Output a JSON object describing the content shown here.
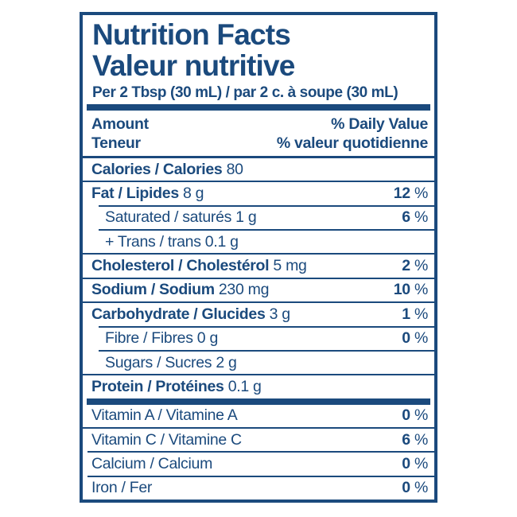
{
  "colors": {
    "navy": "#1b4a7d",
    "background": "#ffffff"
  },
  "label": {
    "title_en": "Nutrition Facts",
    "title_fr": "Valeur nutritive",
    "serving": "Per 2 Tbsp (30 mL) / par 2 c. à soupe (30 mL)",
    "column_header": {
      "amount_en": "Amount",
      "amount_fr": "Teneur",
      "daily_value_en": "% Daily Value",
      "daily_value_fr": "% valeur quotidienne"
    },
    "percent_suffix": "%",
    "rows": [
      {
        "key": "calories",
        "bold": "Calories / Calories",
        "rest": " 80",
        "percent": null,
        "indent": false,
        "divider": "thin"
      },
      {
        "key": "fat",
        "bold": "Fat / Lipides",
        "rest": " 8 g",
        "percent": "12",
        "indent": false,
        "divider": "thin-indent"
      },
      {
        "key": "saturated-fat",
        "bold": "",
        "rest": "Saturated / saturés 1 g",
        "percent": "6",
        "indent": true,
        "divider": "thin-indent"
      },
      {
        "key": "trans-fat",
        "bold": "",
        "rest": "+ Trans / trans 0.1 g",
        "percent": null,
        "indent": true,
        "divider": "thin"
      },
      {
        "key": "cholesterol",
        "bold": "Cholesterol / Cholestérol",
        "rest": " 5 mg",
        "percent": "2",
        "indent": false,
        "divider": "thin"
      },
      {
        "key": "sodium",
        "bold": "Sodium / Sodium",
        "rest": " 230 mg",
        "percent": "10",
        "indent": false,
        "divider": "thin"
      },
      {
        "key": "carbohydrate",
        "bold": "Carbohydrate / Glucides",
        "rest": " 3 g",
        "percent": "1",
        "indent": false,
        "divider": "thin-indent"
      },
      {
        "key": "fibre",
        "bold": "",
        "rest": "Fibre / Fibres 0 g",
        "percent": "0",
        "indent": true,
        "divider": "thin-indent"
      },
      {
        "key": "sugars",
        "bold": "",
        "rest": "Sugars / Sucres 2 g",
        "percent": null,
        "indent": true,
        "divider": "thin"
      },
      {
        "key": "protein",
        "bold": "Protein / Protéines",
        "rest": " 0.1 g",
        "percent": null,
        "indent": false,
        "divider": "thick"
      },
      {
        "key": "vitamin-a",
        "bold": "",
        "rest": "Vitamin A / Vitamine A",
        "percent": "0",
        "indent": false,
        "divider": "thin"
      },
      {
        "key": "vitamin-c",
        "bold": "",
        "rest": "Vitamin C / Vitamine C",
        "percent": "6",
        "indent": false,
        "divider": "thin-sm"
      },
      {
        "key": "calcium",
        "bold": "",
        "rest": "Calcium / Calcium",
        "percent": "0",
        "indent": false,
        "divider": "thin-sm"
      },
      {
        "key": "iron",
        "bold": "",
        "rest": "Iron / Fer",
        "percent": "0",
        "indent": false,
        "divider": "none"
      }
    ]
  }
}
